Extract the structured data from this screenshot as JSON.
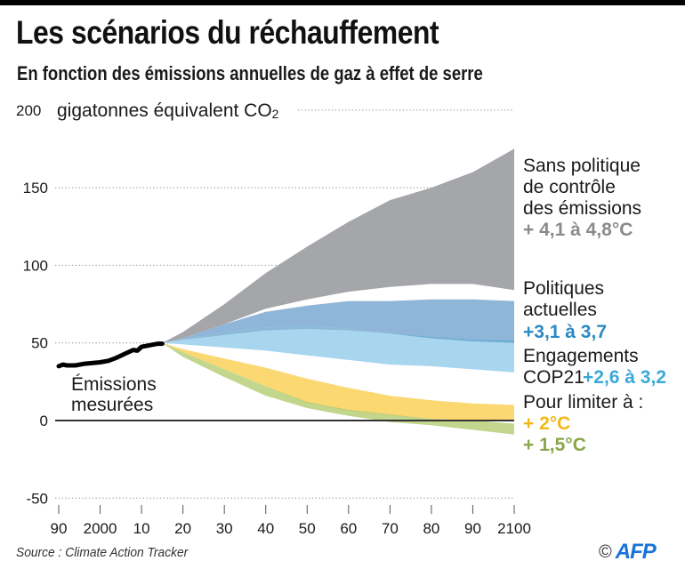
{
  "header": {
    "title": "Les scénarios du réchauffement",
    "subtitle": "En fonction des émissions annuelles de gaz à effet de serre"
  },
  "footer": {
    "source": "Source : Climate Action Tracker",
    "copyright_symbol": "©",
    "agency": "AFP"
  },
  "colors": {
    "gray_band": "#a5a6aa",
    "current_policies_band": "#8fb5d8",
    "current_policies_line": "#5a9cc8",
    "cop21_band": "#a9d6ef",
    "two_degree_band": "#fbd872",
    "one_five_band": "#b9cf7a",
    "overlap_band": "#bdbb4a",
    "measured_line": "#000000",
    "gray_text": "#8a8b8e",
    "blue_text": "#2a8ac4",
    "lightblue_text": "#3aa9da",
    "yellow_text": "#f2b718",
    "green_text": "#8aa64a",
    "afp_blue": "#1a73d9"
  },
  "chart_data": {
    "type": "area",
    "title": "Les scénarios du réchauffement",
    "subtitle": "En fonction des émissions annuelles de gaz à effet de serre",
    "ylabel": "gigatonnes équivalent CO2",
    "unit_label_main": "gigatonnes équivalent CO",
    "unit_label_sub": "2",
    "xlabel": "",
    "xlim": [
      1990,
      2100
    ],
    "ylim": [
      -50,
      200
    ],
    "grid": true,
    "y_ticks": [
      200,
      150,
      100,
      50,
      0,
      -50
    ],
    "y_tick_labels": [
      "200",
      "150",
      "100",
      "50",
      "0",
      "-50"
    ],
    "x_ticks": [
      1990,
      2000,
      2010,
      2020,
      2030,
      2040,
      2050,
      2060,
      2070,
      2080,
      2090,
      2100
    ],
    "x_tick_labels": [
      "90",
      "2000",
      "10",
      "20",
      "30",
      "40",
      "50",
      "60",
      "70",
      "80",
      "90",
      "2100"
    ],
    "measured": {
      "name": "Émissions mesurées",
      "label_lines": [
        "Émissions",
        "mesurées"
      ],
      "x": [
        1990,
        1991,
        1992,
        1994,
        1996,
        1998,
        2000,
        2002,
        2004,
        2006,
        2008,
        2009,
        2010,
        2012,
        2014,
        2015
      ],
      "y": [
        35,
        36,
        35.5,
        35.5,
        36.5,
        37,
        37.5,
        38.5,
        40.5,
        43,
        45.5,
        45,
        47.5,
        48.5,
        49.5,
        49.5
      ]
    },
    "series": [
      {
        "name": "Sans politique de contrôle des émissions",
        "label_lines": [
          "Sans politique",
          "de contrôle",
          "des émissions"
        ],
        "warming": "+ 4,1 à 4,8°C",
        "x": [
          2015,
          2020,
          2030,
          2040,
          2050,
          2060,
          2070,
          2080,
          2090,
          2100
        ],
        "upper": [
          50,
          57,
          75,
          95,
          112,
          128,
          142,
          150,
          160,
          175
        ],
        "lower": [
          50,
          53,
          62,
          72,
          78,
          83,
          86,
          88,
          88,
          84
        ]
      },
      {
        "name": "Politiques actuelles",
        "label_lines": [
          "Politiques",
          "actuelles"
        ],
        "warming": "+3,1 à 3,7",
        "x": [
          2015,
          2020,
          2030,
          2040,
          2050,
          2060,
          2070,
          2080,
          2090,
          2100
        ],
        "upper": [
          50,
          53,
          62,
          70,
          74,
          77,
          77,
          78,
          78,
          77
        ],
        "lower": [
          50,
          52,
          57,
          60,
          61,
          59,
          56,
          53,
          51,
          50
        ]
      },
      {
        "name": "Engagements COP21",
        "label_lines": [
          "Engagements",
          "COP21"
        ],
        "warming": "+2,6 à 3,2",
        "x": [
          2015,
          2020,
          2030,
          2040,
          2050,
          2060,
          2070,
          2080,
          2090,
          2100
        ],
        "upper": [
          50,
          52,
          55,
          58,
          59,
          58,
          56,
          54,
          52,
          52
        ],
        "lower": [
          50,
          49,
          47,
          45,
          42,
          39,
          36,
          35,
          33,
          31
        ]
      },
      {
        "name": "Pour limiter à + 2°C",
        "label_lines": [
          "Pour limiter à :"
        ],
        "warming": "+ 2°C",
        "x": [
          2015,
          2020,
          2030,
          2040,
          2050,
          2060,
          2070,
          2080,
          2090,
          2100
        ],
        "upper": [
          50,
          46,
          40,
          34,
          27,
          21,
          16,
          13,
          11,
          10
        ],
        "lower": [
          50,
          44,
          33,
          22,
          11,
          6,
          3,
          1,
          0,
          0
        ]
      },
      {
        "name": "Pour limiter à + 1,5°C",
        "label_lines": [],
        "warming": "+ 1,5°C",
        "x": [
          2015,
          2020,
          2030,
          2040,
          2050,
          2060,
          2070,
          2080,
          2090,
          2100
        ],
        "upper": [
          50,
          44,
          33,
          22,
          12,
          7,
          4,
          1,
          0,
          -2
        ],
        "lower": [
          50,
          41,
          28,
          16,
          8,
          3,
          -1,
          -3,
          -6,
          -9
        ]
      }
    ]
  }
}
